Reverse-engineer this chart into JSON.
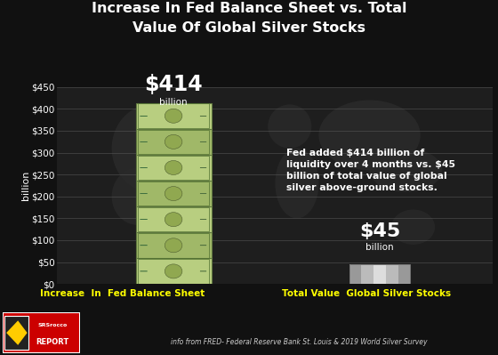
{
  "title_line1": "Increase In Fed Balance Sheet vs. Total",
  "title_line2": "Value Of Global Silver Stocks",
  "categories": [
    "Increase  In  Fed Balance Sheet",
    "Total Value  Global Silver Stocks"
  ],
  "values": [
    414,
    45
  ],
  "ylim": [
    0,
    450
  ],
  "yticks": [
    0,
    50,
    100,
    150,
    200,
    250,
    300,
    350,
    400,
    450
  ],
  "ylabel": "billion",
  "bar1_label_large": "$414",
  "bar1_label_small": "billion",
  "bar2_label_large": "$45",
  "bar2_label_small": "billion",
  "annotation": "Fed added $414 billion of\nliquidity over 4 months vs. $45\nbillion of total value of global\nsilver above-ground stocks.",
  "source": "info from FRED- Federal Reserve Bank St. Louis & 2019 World Silver Survey",
  "background_color": "#111111",
  "grid_color": "#666666",
  "text_color": "#ffffff",
  "title_color": "#ffffff",
  "ylabel_color": "#ffffff",
  "tick_color": "#ffffff",
  "cat_label_color": "#ffff00",
  "source_color": "#cccccc",
  "bar1_bill_colors": [
    "#c8d87a",
    "#b8c86a",
    "#a8b85a",
    "#98a84a",
    "#88983a"
  ],
  "bar2_grad_colors": [
    "#999999",
    "#bbbbbb",
    "#dddddd",
    "#bbbbbb",
    "#999999"
  ],
  "logo_bg": "#cc0000"
}
